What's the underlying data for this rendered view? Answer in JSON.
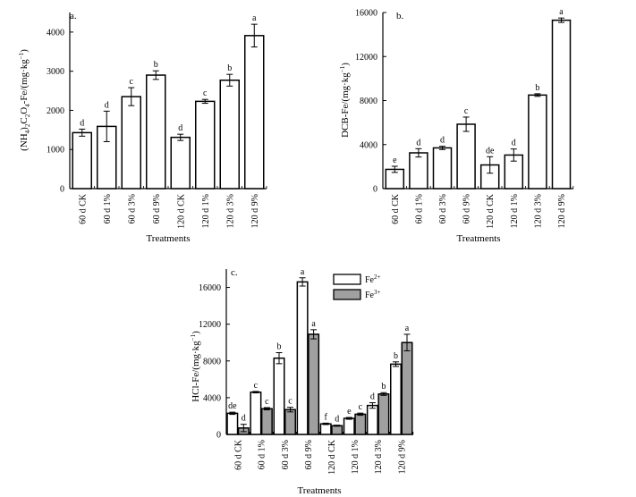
{
  "chart_data": [
    {
      "type": "bar",
      "panel": "a.",
      "ylabel": "(NH4)2C2O4-Fe/(mg·kg−1)",
      "xlabel": "Treatments",
      "categories": [
        "60 d CK",
        "60 d 1%",
        "60 d 3%",
        "60 d 9%",
        "120 d CK",
        "120 d 1%",
        "120 d 3%",
        "120 d 9%"
      ],
      "values": [
        1430,
        1590,
        2350,
        2900,
        1310,
        2230,
        2770,
        3910
      ],
      "errors": [
        90,
        390,
        230,
        110,
        80,
        50,
        150,
        290
      ],
      "letters": [
        "d",
        "d",
        "c",
        "b",
        "d",
        "c",
        "b",
        "a"
      ],
      "ylim": [
        0,
        4500
      ],
      "yticks": [
        0,
        1000,
        2000,
        3000,
        4000
      ]
    },
    {
      "type": "bar",
      "panel": "b.",
      "ylabel": "DCB-Fe/(mg·kg−1)",
      "xlabel": "Treatments",
      "categories": [
        "60 d CK",
        "60 d 1%",
        "60 d 3%",
        "60 d 9%",
        "120 d CK",
        "120 d 1%",
        "120 d 3%",
        "120 d 9%"
      ],
      "values": [
        1750,
        3250,
        3700,
        5850,
        2150,
        3050,
        8500,
        15300
      ],
      "errors": [
        280,
        380,
        150,
        650,
        750,
        550,
        120,
        200
      ],
      "letters": [
        "e",
        "d",
        "d",
        "c",
        "de",
        "d",
        "b",
        "a"
      ],
      "ylim": [
        0,
        16000
      ],
      "yticks": [
        0,
        4000,
        8000,
        12000,
        16000
      ]
    },
    {
      "type": "bar",
      "panel": "c.",
      "ylabel": "HCl-Fe/(mg·kg−1)",
      "xlabel": "Treatments",
      "categories": [
        "60 d CK",
        "60 d 1%",
        "60 d 3%",
        "60 d 9%",
        "120 d CK",
        "120 d 1%",
        "120 d 3%",
        "120 d 9%"
      ],
      "ylim": [
        0,
        18000
      ],
      "yticks": [
        0,
        4000,
        8000,
        12000,
        16000
      ],
      "series": [
        {
          "name": "Fe2+",
          "legend_base": "Fe",
          "legend_sup": "2+",
          "color": "#ffffff",
          "values": [
            2300,
            4600,
            8300,
            16600,
            1150,
            1750,
            3150,
            7650
          ],
          "errors": [
            120,
            80,
            600,
            450,
            80,
            100,
            300,
            250
          ],
          "letters": [
            "de",
            "c",
            "b",
            "a",
            "f",
            "e",
            "d",
            "b"
          ]
        },
        {
          "name": "Fe3+",
          "legend_base": "Fe",
          "legend_sup": "3+",
          "color": "#a0a0a0",
          "values": [
            700,
            2800,
            2700,
            10900,
            950,
            2200,
            4400,
            10000
          ],
          "errors": [
            400,
            120,
            250,
            500,
            60,
            120,
            150,
            900
          ],
          "letters": [
            "d",
            "c",
            "c",
            "a",
            "d",
            "c",
            "b",
            "a"
          ]
        }
      ]
    }
  ]
}
